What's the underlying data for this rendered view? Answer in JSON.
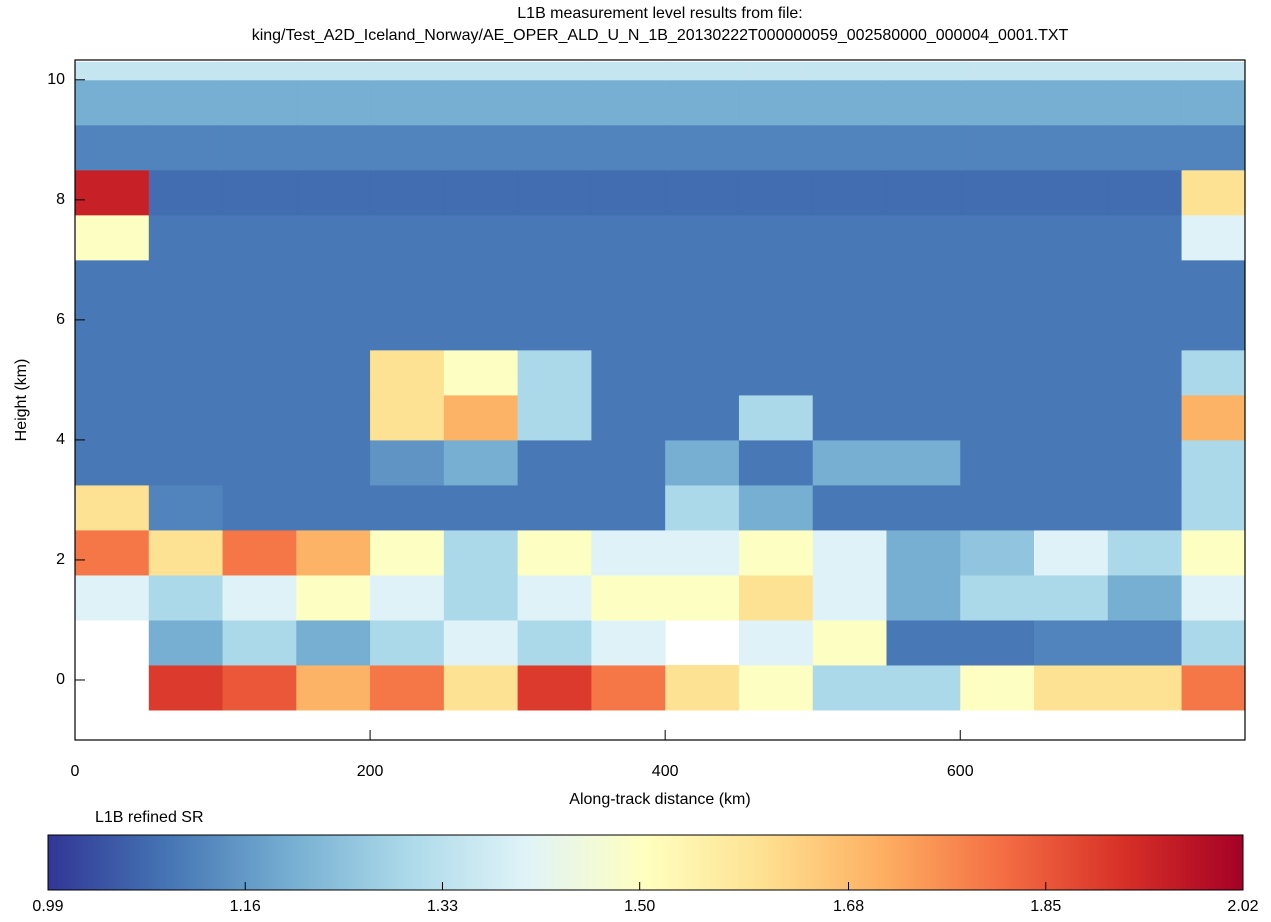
{
  "chart_data": {
    "type": "heatmap",
    "title": "L1B measurement level results from file:",
    "subtitle": "king/Test_A2D_Iceland_Norway/AE_OPER_ALD_U_N_1B_20130222T000000059_002580000_000004_0001.TXT",
    "x_label": "Along-track distance (km)",
    "y_label": "Height (km)",
    "colorbar_label": "L1B refined SR",
    "xlim": [
      0,
      793
    ],
    "xticks": [
      0,
      200,
      400,
      600
    ],
    "ylim": [
      -1,
      10.33
    ],
    "yticks": [
      0,
      2,
      4,
      6,
      8,
      10
    ],
    "x_edges": [
      0,
      50,
      100,
      150,
      200,
      250,
      300,
      350,
      400,
      450,
      500,
      550,
      600,
      650,
      700,
      750,
      793
    ],
    "y_edges": [
      -0.5,
      0.25,
      1,
      1.75,
      2.5,
      3.25,
      4,
      4.75,
      5.5,
      6.25,
      7,
      7.75,
      8.5,
      9.25,
      10,
      10.3
    ],
    "z": [
      [
        null,
        1.9,
        1.85,
        1.7,
        1.8,
        1.6,
        1.9,
        1.8,
        1.6,
        1.5,
        1.3,
        1.3,
        1.5,
        1.6,
        1.6,
        1.8
      ],
      [
        null,
        1.2,
        1.3,
        1.2,
        1.3,
        1.4,
        1.3,
        1.4,
        null,
        1.4,
        1.5,
        1.1,
        1.1,
        1.12,
        1.12,
        1.3
      ],
      [
        1.4,
        1.3,
        1.4,
        1.5,
        1.4,
        1.3,
        1.4,
        1.5,
        1.5,
        1.6,
        1.4,
        1.2,
        1.3,
        1.3,
        1.2,
        1.4
      ],
      [
        1.8,
        1.6,
        1.8,
        1.7,
        1.5,
        1.3,
        1.5,
        1.4,
        1.4,
        1.5,
        1.4,
        1.2,
        1.25,
        1.4,
        1.3,
        1.5
      ],
      [
        1.6,
        1.12,
        1.1,
        1.1,
        1.1,
        1.1,
        1.1,
        1.1,
        1.3,
        1.2,
        1.1,
        1.1,
        1.1,
        1.1,
        1.1,
        1.3
      ],
      [
        1.1,
        1.1,
        1.1,
        1.1,
        1.15,
        1.2,
        1.1,
        1.1,
        1.2,
        1.1,
        1.2,
        1.2,
        1.1,
        1.1,
        1.1,
        1.3
      ],
      [
        1.1,
        1.1,
        1.1,
        1.1,
        1.6,
        1.7,
        1.3,
        1.1,
        1.1,
        1.3,
        1.1,
        1.1,
        1.1,
        1.1,
        1.1,
        1.7
      ],
      [
        1.1,
        1.1,
        1.1,
        1.1,
        1.6,
        1.5,
        1.3,
        1.1,
        1.1,
        1.1,
        1.1,
        1.1,
        1.1,
        1.1,
        1.1,
        1.3
      ],
      [
        1.1,
        1.1,
        1.1,
        1.1,
        1.1,
        1.1,
        1.1,
        1.1,
        1.1,
        1.1,
        1.1,
        1.1,
        1.1,
        1.1,
        1.1,
        1.1
      ],
      [
        1.1,
        1.1,
        1.1,
        1.1,
        1.1,
        1.1,
        1.1,
        1.1,
        1.1,
        1.1,
        1.1,
        1.1,
        1.1,
        1.1,
        1.1,
        1.1
      ],
      [
        1.5,
        1.1,
        1.1,
        1.1,
        1.1,
        1.1,
        1.1,
        1.1,
        1.1,
        1.1,
        1.1,
        1.1,
        1.1,
        1.1,
        1.1,
        1.4
      ],
      [
        1.95,
        1.08,
        1.08,
        1.08,
        1.08,
        1.08,
        1.08,
        1.08,
        1.08,
        1.08,
        1.08,
        1.08,
        1.08,
        1.08,
        1.08,
        1.6
      ],
      [
        1.12,
        1.12,
        1.12,
        1.12,
        1.12,
        1.12,
        1.12,
        1.12,
        1.12,
        1.12,
        1.12,
        1.12,
        1.12,
        1.12,
        1.12,
        1.12
      ],
      [
        1.2,
        1.2,
        1.2,
        1.2,
        1.2,
        1.2,
        1.2,
        1.2,
        1.2,
        1.2,
        1.2,
        1.2,
        1.2,
        1.2,
        1.2,
        1.2
      ],
      [
        1.35,
        1.35,
        1.35,
        1.35,
        1.35,
        1.35,
        1.35,
        1.35,
        1.35,
        1.35,
        1.35,
        1.35,
        1.35,
        1.35,
        1.35,
        1.35
      ]
    ],
    "clim": [
      0.99,
      2.02
    ],
    "cticks": [
      0.99,
      1.16,
      1.33,
      {
        "value": 1.5,
        "label": "1.50"
      },
      1.68,
      1.85,
      2.02
    ],
    "colormap": [
      "#313695",
      "#4575b4",
      "#74add1",
      "#abd9e9",
      "#e0f3f8",
      "#ffffbf",
      "#fee090",
      "#fdae61",
      "#f46d43",
      "#d73027",
      "#a50026"
    ]
  }
}
